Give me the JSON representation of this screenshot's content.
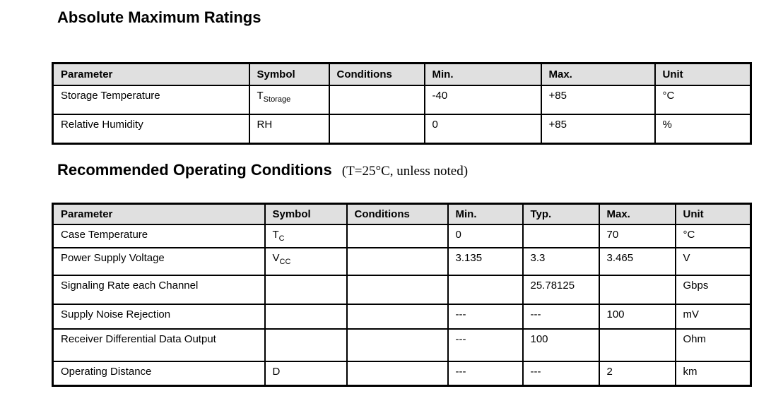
{
  "colors": {
    "header_bg": "#e0e0e0",
    "border": "#000000",
    "text": "#000000",
    "background": "#ffffff"
  },
  "sections": [
    {
      "id": "absolute-maximum-ratings",
      "title": "Absolute Maximum Ratings",
      "subtitle": "",
      "table": {
        "headers": [
          "Parameter",
          "Symbol",
          "Conditions",
          "Min.",
          "Max.",
          "Unit"
        ],
        "rows": [
          [
            "Storage Temperature",
            "T|Storage",
            "",
            "-40",
            "+85",
            "°C"
          ],
          [
            "Relative Humidity",
            "RH",
            "",
            "0",
            "+85",
            "%"
          ]
        ]
      }
    },
    {
      "id": "recommended-operating-conditions",
      "title": "Recommended Operating Conditions",
      "subtitle": "(T=25°C, unless noted)",
      "table": {
        "headers": [
          "Parameter",
          "Symbol",
          "Conditions",
          "Min.",
          "Typ.",
          "Max.",
          "Unit"
        ],
        "rows": [
          [
            "Case Temperature",
            "T|C",
            "",
            "0",
            "",
            "70",
            "°C"
          ],
          [
            "Power Supply Voltage",
            "V|CC",
            "",
            "3.135",
            "3.3",
            "3.465",
            "V"
          ],
          [
            "Signaling Rate each Channel",
            "",
            "",
            "",
            "25.78125",
            "",
            "Gbps"
          ],
          [
            "Supply Noise Rejection",
            "",
            "",
            "---",
            "---",
            "100",
            "mV"
          ],
          [
            "Receiver Differential Data Output",
            "",
            "",
            "---",
            "100",
            "",
            "Ohm"
          ],
          [
            "Operating Distance",
            "D",
            "",
            "---",
            "---",
            "2",
            "km"
          ]
        ]
      }
    }
  ]
}
